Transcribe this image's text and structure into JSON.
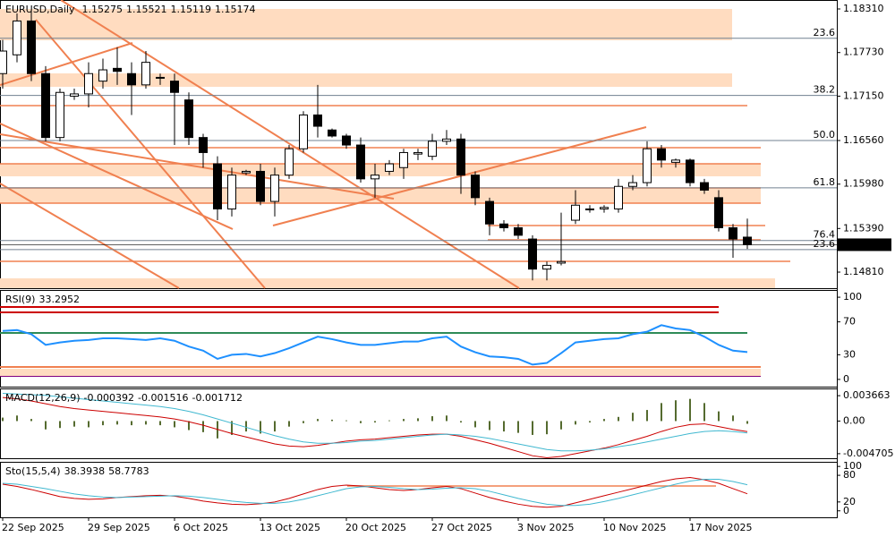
{
  "chart_data": [
    {
      "type": "candlestick",
      "title": "EURUSD,Daily",
      "categories": [
        "22 Sep 2025",
        null,
        null,
        null,
        null,
        null,
        "29 Sep 2025",
        null,
        null,
        null,
        null,
        null,
        "6 Oct 2025",
        null,
        null,
        null,
        null,
        null,
        "13 Oct 2025",
        null,
        null,
        null,
        null,
        null,
        "20 Oct 2025",
        null,
        null,
        null,
        null,
        null,
        "27 Oct 2025",
        null,
        null,
        null,
        null,
        null,
        "3 Nov 2025",
        null,
        null,
        null,
        null,
        null,
        "10 Nov 2025",
        null,
        null,
        null,
        null,
        null,
        "17 Nov 2025",
        null,
        null,
        null,
        null
      ],
      "open": [
        1.1745,
        1.177,
        1.1815,
        1.1745,
        1.166,
        1.1715,
        1.1718,
        1.1735,
        1.1752,
        1.1745,
        1.173,
        1.174,
        1.1735,
        1.171,
        1.166,
        1.1625,
        1.1565,
        1.1613,
        1.1615,
        1.1575,
        1.161,
        1.1645,
        1.169,
        1.167,
        1.1662,
        1.165,
        1.1605,
        1.1615,
        1.162,
        1.1638,
        1.1635,
        1.1655,
        1.1658,
        1.161,
        1.1575,
        1.1545,
        1.154,
        1.1525,
        1.1485,
        1.1493,
        1.155,
        1.1565,
        1.1565,
        1.1565,
        1.1595,
        1.16,
        1.1645,
        1.1627,
        1.163,
        1.16,
        1.158,
        1.154,
        1.15275
      ],
      "high": [
        1.179,
        1.1825,
        1.183,
        1.1755,
        1.1725,
        1.1725,
        1.176,
        1.1765,
        1.178,
        1.176,
        1.1775,
        1.1745,
        1.1745,
        1.172,
        1.1665,
        1.1635,
        1.162,
        1.1617,
        1.1625,
        1.162,
        1.165,
        1.1695,
        1.173,
        1.1672,
        1.1665,
        1.166,
        1.1625,
        1.163,
        1.1645,
        1.1645,
        1.1665,
        1.167,
        1.1665,
        1.1615,
        1.158,
        1.155,
        1.1545,
        1.153,
        1.1495,
        1.156,
        1.159,
        1.157,
        1.157,
        1.1605,
        1.161,
        1.1655,
        1.165,
        1.1632,
        1.1632,
        1.1605,
        1.159,
        1.1545,
        1.15521
      ],
      "low": [
        1.1725,
        1.176,
        1.1735,
        1.1655,
        1.1655,
        1.171,
        1.17,
        1.1725,
        1.173,
        1.169,
        1.1725,
        1.173,
        1.165,
        1.165,
        1.162,
        1.155,
        1.1555,
        1.161,
        1.157,
        1.1555,
        1.1605,
        1.164,
        1.166,
        1.166,
        1.1645,
        1.16,
        1.158,
        1.161,
        1.1605,
        1.163,
        1.163,
        1.165,
        1.1585,
        1.157,
        1.153,
        1.1535,
        1.1525,
        1.147,
        1.147,
        1.149,
        1.1545,
        1.156,
        1.156,
        1.156,
        1.159,
        1.1595,
        1.162,
        1.162,
        1.1595,
        1.1585,
        1.1535,
        1.15,
        1.15119
      ],
      "close": [
        1.1775,
        1.1815,
        1.1745,
        1.166,
        1.172,
        1.1718,
        1.1745,
        1.175,
        1.1748,
        1.173,
        1.176,
        1.174,
        1.172,
        1.166,
        1.164,
        1.1565,
        1.161,
        1.1615,
        1.1575,
        1.161,
        1.1645,
        1.169,
        1.1675,
        1.1662,
        1.165,
        1.1605,
        1.161,
        1.1625,
        1.164,
        1.164,
        1.1655,
        1.1658,
        1.161,
        1.158,
        1.1545,
        1.154,
        1.153,
        1.1485,
        1.149,
        1.1495,
        1.157,
        1.1565,
        1.1567,
        1.1595,
        1.16,
        1.1645,
        1.163,
        1.163,
        1.16,
        1.159,
        1.154,
        1.1525,
        1.15174
      ],
      "ylim": [
        1.14596,
        1.18429
      ],
      "yticks": [
        {
          "value": 1.1831,
          "label": "1.18310"
        },
        {
          "value": 1.1773,
          "label": "1.17730"
        },
        {
          "value": 1.1715,
          "label": "1.17150"
        },
        {
          "value": 1.1656,
          "label": "1.16560"
        },
        {
          "value": 1.1598,
          "label": "1.15980"
        },
        {
          "value": 1.1539,
          "label": "1.15390"
        },
        {
          "value": 1.1481,
          "label": "1.14810"
        }
      ],
      "fib_levels": [
        {
          "label": "23.6",
          "value": 1.1792
        },
        {
          "label": "38.2",
          "value": 1.1716
        },
        {
          "label": "50.0",
          "value": 1.1656
        },
        {
          "label": "61.8",
          "value": 1.1593
        },
        {
          "label": "76.4",
          "value": 1.1523
        },
        {
          "label": "23.6",
          "value": 1.1511
        }
      ]
    },
    {
      "type": "line",
      "title": "RSI(9)",
      "ylim": [
        -8.8,
        108.8
      ],
      "yticks": [
        0,
        30,
        70,
        100
      ],
      "series": [
        {
          "color": "#1e90ff",
          "values": [
            59,
            60,
            55,
            42,
            45,
            47,
            48,
            50,
            50,
            49,
            48,
            50,
            47,
            40,
            35,
            25,
            30,
            31,
            28,
            32,
            38,
            45,
            52,
            49,
            45,
            42,
            42,
            44,
            46,
            46,
            50,
            52,
            40,
            33,
            28,
            27,
            25,
            18,
            20,
            32,
            45,
            47,
            49,
            50,
            55,
            58,
            66,
            62,
            60,
            52,
            42,
            35,
            33.2952
          ]
        }
      ]
    },
    {
      "type": "bar",
      "title": "MACD(12,26,9)",
      "ylim": [
        -0.005362,
        0.004708
      ],
      "yticks": [
        -0.004705,
        {
          "value": 0,
          "label": "0.00"
        },
        0.003663
      ],
      "series": [
        {
          "kind": "bar",
          "color": "#556b2f",
          "values": [
            0.0005,
            0.0008,
            0.0003,
            -0.0012,
            -0.001,
            -0.0008,
            -0.0009,
            -0.0006,
            -0.0005,
            -0.0006,
            -0.0005,
            -0.0006,
            -0.0009,
            -0.0013,
            -0.0016,
            -0.0025,
            -0.002,
            -0.0015,
            -0.0018,
            -0.0015,
            -0.0008,
            -0.0003,
            0.0003,
            0.0002,
            0.0001,
            -0.0003,
            -0.0002,
            0.0001,
            0.0003,
            0.0004,
            0.0007,
            0.0008,
            -0.0002,
            -0.0009,
            -0.0013,
            -0.0015,
            -0.0017,
            -0.002,
            -0.0019,
            -0.0012,
            -0.0005,
            -0.0002,
            0.0003,
            0.0006,
            0.0012,
            0.0016,
            0.0026,
            0.003,
            0.0032,
            0.0026,
            0.0014,
            0.0008,
            -0.000392
          ]
        },
        {
          "kind": "line",
          "color": "#cc0000",
          "values": [
            0.0034,
            0.0032,
            0.0029,
            0.0025,
            0.0021,
            0.0018,
            0.0016,
            0.0014,
            0.0012,
            0.001,
            0.0008,
            0.0006,
            0.0003,
            -0.0001,
            -0.0006,
            -0.0012,
            -0.0018,
            -0.0023,
            -0.0028,
            -0.0033,
            -0.0036,
            -0.0037,
            -0.0035,
            -0.0032,
            -0.0029,
            -0.0027,
            -0.0026,
            -0.0024,
            -0.0022,
            -0.002,
            -0.0019,
            -0.0019,
            -0.0022,
            -0.0027,
            -0.0032,
            -0.0038,
            -0.0044,
            -0.005,
            -0.0053,
            -0.0051,
            -0.0047,
            -0.0043,
            -0.0039,
            -0.0034,
            -0.0028,
            -0.0022,
            -0.0015,
            -0.0009,
            -0.0005,
            -0.0004,
            -0.0008,
            -0.0012,
            -0.001516
          ]
        },
        {
          "kind": "line",
          "color": "#40b8d0",
          "values": [
            0.004,
            0.0039,
            0.0038,
            0.0037,
            0.0035,
            0.0033,
            0.0031,
            0.0029,
            0.0027,
            0.0025,
            0.0023,
            0.0021,
            0.0018,
            0.0014,
            0.0009,
            0.0003,
            -0.0003,
            -0.0009,
            -0.0015,
            -0.0021,
            -0.0026,
            -0.003,
            -0.0032,
            -0.0032,
            -0.0031,
            -0.0029,
            -0.0028,
            -0.0026,
            -0.0024,
            -0.0022,
            -0.002,
            -0.0019,
            -0.002,
            -0.0022,
            -0.0025,
            -0.0029,
            -0.0033,
            -0.0037,
            -0.0041,
            -0.0043,
            -0.0043,
            -0.0042,
            -0.004,
            -0.0037,
            -0.0034,
            -0.003,
            -0.0026,
            -0.0022,
            -0.0018,
            -0.0015,
            -0.0014,
            -0.0015,
            -0.001712
          ]
        }
      ]
    },
    {
      "type": "line",
      "title": "Sto(15,5,4)",
      "ylim": [
        -14.6,
        110.4
      ],
      "yticks": [
        0,
        20,
        80,
        100
      ],
      "series": [
        {
          "color": "#cc0000",
          "values": [
            60,
            55,
            48,
            40,
            32,
            28,
            26,
            27,
            30,
            32,
            34,
            35,
            33,
            28,
            22,
            18,
            15,
            14,
            16,
            20,
            28,
            38,
            48,
            55,
            58,
            56,
            52,
            48,
            46,
            48,
            52,
            55,
            50,
            40,
            30,
            22,
            15,
            10,
            8,
            10,
            18,
            26,
            34,
            42,
            50,
            58,
            66,
            72,
            75,
            70,
            62,
            50,
            38.3938
          ]
        },
        {
          "color": "#40b8d0",
          "values": [
            62,
            60,
            55,
            50,
            44,
            38,
            34,
            31,
            30,
            31,
            32,
            33,
            34,
            33,
            30,
            26,
            22,
            19,
            17,
            17,
            20,
            26,
            34,
            42,
            50,
            54,
            55,
            53,
            50,
            48,
            49,
            51,
            52,
            50,
            44,
            36,
            28,
            21,
            15,
            12,
            12,
            15,
            21,
            28,
            36,
            44,
            52,
            60,
            67,
            71,
            71,
            66,
            58.7783
          ]
        }
      ]
    }
  ]
}
